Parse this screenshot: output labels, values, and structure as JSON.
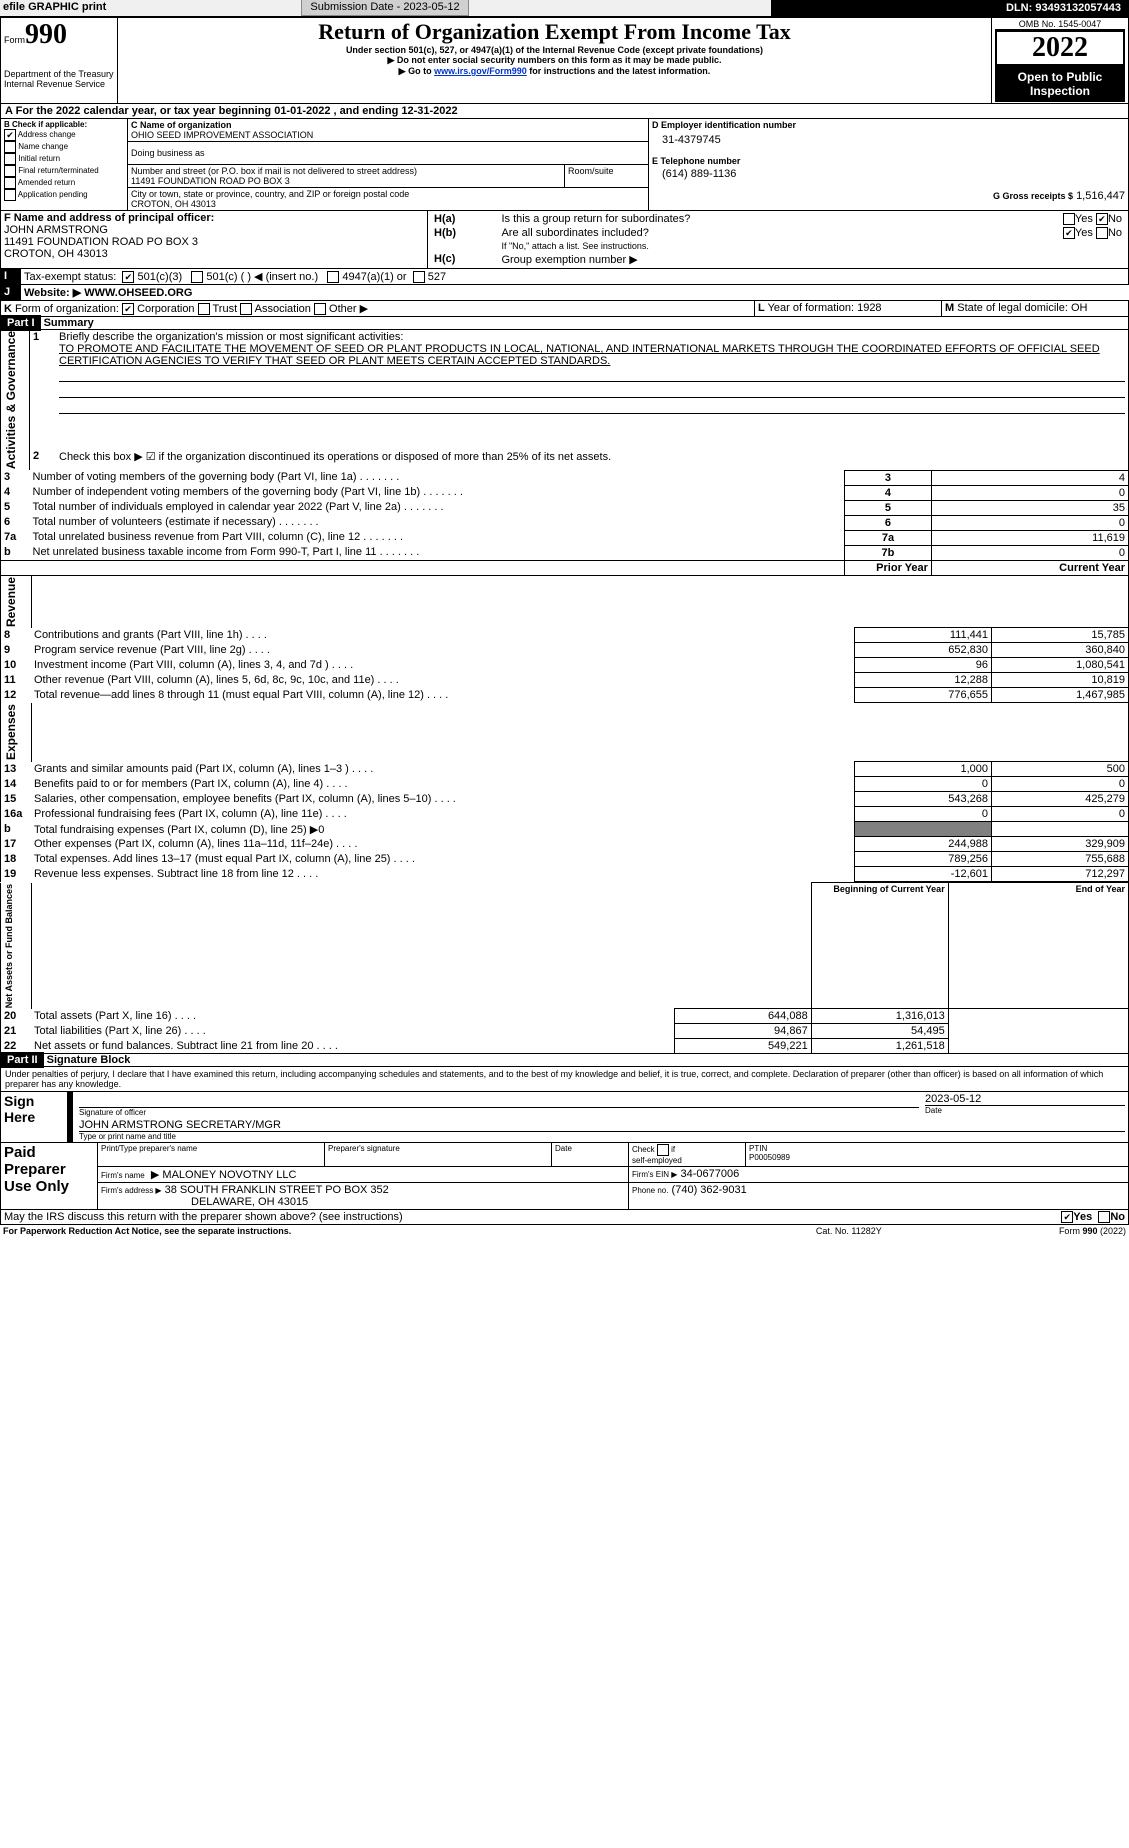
{
  "header": {
    "efile": "efile GRAPHIC print",
    "submission_label": "Submission Date - 2023-05-12",
    "dln_label": "DLN: 93493132057443"
  },
  "top": {
    "form": "990",
    "form_prefix": "Form",
    "title": "Return of Organization Exempt From Income Tax",
    "subtitle": "Under section 501(c), 527, or 4947(a)(1) of the Internal Revenue Code (except private foundations)",
    "note1": "▶ Do not enter social security numbers on this form as it may be made public.",
    "note2": "▶ Go to ",
    "link": "www.irs.gov/Form990",
    "note2b": " for instructions and the latest information.",
    "dept": "Department of the Treasury",
    "irs": "Internal Revenue Service",
    "omb": "OMB No. 1545-0047",
    "year": "2022",
    "open": "Open to Public Inspection"
  },
  "line_a": "For the 2022 calendar year, or tax year beginning 01-01-2022     , and ending 12-31-2022",
  "b": {
    "label": "B Check if applicable:",
    "items": [
      {
        "l": "Address change",
        "c": true
      },
      {
        "l": "Name change",
        "c": false
      },
      {
        "l": "Initial return",
        "c": false
      },
      {
        "l": "Final return/terminated",
        "c": false
      },
      {
        "l": "Amended return",
        "c": false
      },
      {
        "l": "Application pending",
        "c": false
      }
    ]
  },
  "c": {
    "name_label": "C Name of organization",
    "name": "OHIO SEED IMPROVEMENT ASSOCIATION",
    "dba_label": "Doing business as",
    "dba": "",
    "street_label": "Number and street (or P.O. box if mail is not delivered to street address)",
    "room_label": "Room/suite",
    "street": "11491 FOUNDATION ROAD PO BOX 3",
    "city_label": "City or town, state or province, country, and ZIP or foreign postal code",
    "city": "CROTON, OH  43013"
  },
  "d": {
    "label": "D Employer identification number",
    "val": "31-4379745"
  },
  "e": {
    "label": "E Telephone number",
    "val": "(614) 889-1136"
  },
  "g": {
    "label": "G Gross receipts $",
    "val": "1,516,447"
  },
  "f": {
    "label": "F  Name and address of principal officer:",
    "name": "JOHN ARMSTRONG",
    "addr1": "11491 FOUNDATION ROAD PO BOX 3",
    "addr2": "CROTON, OH  43013"
  },
  "h": {
    "a_label": "H(a)",
    "a_text": "Is this a group return for subordinates?",
    "a_yes": "Yes",
    "a_no": "No",
    "b_label": "H(b)",
    "b_text": "Are all subordinates included?",
    "b_note": "If \"No,\" attach a list. See instructions.",
    "c_label": "H(c)",
    "c_text": "Group exemption number ▶"
  },
  "i": {
    "label": "I",
    "text": "Tax-exempt status:",
    "o1": "501(c)(3)",
    "o2": "501(c) (   ) ◀ (insert no.)",
    "o3": "4947(a)(1) or",
    "o4": "527"
  },
  "j": {
    "label": "J",
    "text": "Website: ▶",
    "val": "WWW.OHSEED.ORG"
  },
  "k": {
    "label": "K",
    "text": "Form of organization:",
    "o1": "Corporation",
    "o2": "Trust",
    "o3": "Association",
    "o4": "Other ▶"
  },
  "l": {
    "label": "L",
    "text": "Year of formation:",
    "val": "1928"
  },
  "m": {
    "label": "M",
    "text": "State of legal domicile:",
    "val": "OH"
  },
  "part1": {
    "label": "Part I",
    "title": "Summary",
    "side_ag": "Activities & Governance",
    "side_rev": "Revenue",
    "side_exp": "Expenses",
    "side_net": "Net Assets or Fund Balances",
    "q1": "Briefly describe the organization's mission or most significant activities:",
    "mission": "TO PROMOTE AND FACILITATE THE MOVEMENT OF SEED OR PLANT PRODUCTS IN LOCAL, NATIONAL, AND INTERNATIONAL MARKETS THROUGH THE COORDINATED EFFORTS OF OFFICIAL SEED CERTIFICATION AGENCIES TO VERIFY THAT SEED OR PLANT MEETS CERTAIN ACCEPTED STANDARDS.",
    "q2": "Check this box ▶ ☑ if the organization discontinued its operations or disposed of more than 25% of its net assets.",
    "rows_ag": [
      {
        "n": "3",
        "t": "Number of voting members of the governing body (Part VI, line 1a)",
        "c": "3",
        "v": "4"
      },
      {
        "n": "4",
        "t": "Number of independent voting members of the governing body (Part VI, line 1b)",
        "c": "4",
        "v": "0"
      },
      {
        "n": "5",
        "t": "Total number of individuals employed in calendar year 2022 (Part V, line 2a)",
        "c": "5",
        "v": "35"
      },
      {
        "n": "6",
        "t": "Total number of volunteers (estimate if necessary)",
        "c": "6",
        "v": "0"
      },
      {
        "n": "7a",
        "t": "Total unrelated business revenue from Part VIII, column (C), line 12",
        "c": "7a",
        "v": "11,619"
      },
      {
        "n": "b",
        "t": "Net unrelated business taxable income from Form 990-T, Part I, line 11",
        "c": "7b",
        "v": "0"
      }
    ],
    "col_prior": "Prior Year",
    "col_current": "Current Year",
    "rows_rev": [
      {
        "n": "8",
        "t": "Contributions and grants (Part VIII, line 1h)",
        "p": "111,441",
        "c": "15,785"
      },
      {
        "n": "9",
        "t": "Program service revenue (Part VIII, line 2g)",
        "p": "652,830",
        "c": "360,840"
      },
      {
        "n": "10",
        "t": "Investment income (Part VIII, column (A), lines 3, 4, and 7d )",
        "p": "96",
        "c": "1,080,541"
      },
      {
        "n": "11",
        "t": "Other revenue (Part VIII, column (A), lines 5, 6d, 8c, 9c, 10c, and 11e)",
        "p": "12,288",
        "c": "10,819"
      },
      {
        "n": "12",
        "t": "Total revenue—add lines 8 through 11 (must equal Part VIII, column (A), line 12)",
        "p": "776,655",
        "c": "1,467,985"
      }
    ],
    "rows_exp": [
      {
        "n": "13",
        "t": "Grants and similar amounts paid (Part IX, column (A), lines 1–3 )",
        "p": "1,000",
        "c": "500"
      },
      {
        "n": "14",
        "t": "Benefits paid to or for members (Part IX, column (A), line 4)",
        "p": "0",
        "c": "0"
      },
      {
        "n": "15",
        "t": "Salaries, other compensation, employee benefits (Part IX, column (A), lines 5–10)",
        "p": "543,268",
        "c": "425,279"
      },
      {
        "n": "16a",
        "t": "Professional fundraising fees (Part IX, column (A), line 11e)",
        "p": "0",
        "c": "0"
      },
      {
        "n": "b",
        "t": "Total fundraising expenses (Part IX, column (D), line 25) ▶0",
        "p": "",
        "c": "",
        "gray": true
      },
      {
        "n": "17",
        "t": "Other expenses (Part IX, column (A), lines 11a–11d, 11f–24e)",
        "p": "244,988",
        "c": "329,909"
      },
      {
        "n": "18",
        "t": "Total expenses. Add lines 13–17 (must equal Part IX, column (A), line 25)",
        "p": "789,256",
        "c": "755,688"
      },
      {
        "n": "19",
        "t": "Revenue less expenses. Subtract line 18 from line 12",
        "p": "-12,601",
        "c": "712,297"
      }
    ],
    "col_begin": "Beginning of Current Year",
    "col_end": "End of Year",
    "rows_net": [
      {
        "n": "20",
        "t": "Total assets (Part X, line 16)",
        "p": "644,088",
        "c": "1,316,013"
      },
      {
        "n": "21",
        "t": "Total liabilities (Part X, line 26)",
        "p": "94,867",
        "c": "54,495"
      },
      {
        "n": "22",
        "t": "Net assets or fund balances. Subtract line 21 from line 20",
        "p": "549,221",
        "c": "1,261,518"
      }
    ]
  },
  "part2": {
    "label": "Part II",
    "title": "Signature Block",
    "decl": "Under penalties of perjury, I declare that I have examined this return, including accompanying schedules and statements, and to the best of my knowledge and belief, it is true, correct, and complete. Declaration of preparer (other than officer) is based on all information of which preparer has any knowledge.",
    "sign_here": "Sign Here",
    "sig_of_officer": "Signature of officer",
    "date_label": "Date",
    "sig_date": "2023-05-12",
    "officer_name": "JOHN ARMSTRONG  SECRETARY/MGR",
    "type_name": "Type or print name and title",
    "paid": "Paid Preparer Use Only",
    "prep_name_label": "Print/Type preparer's name",
    "prep_sig_label": "Preparer's signature",
    "check_label": "Check",
    "if_label": "if",
    "self_emp": "self-employed",
    "ptin_label": "PTIN",
    "ptin": "P00050989",
    "firm_name_label": "Firm's name",
    "firm_name": "MALONEY NOVOTNY LLC",
    "firm_ein_label": "Firm's EIN ▶",
    "firm_ein": "34-0677006",
    "firm_addr_label": "Firm's address ▶",
    "firm_addr": "38 SOUTH FRANKLIN STREET PO BOX 352",
    "firm_addr2": "DELAWARE, OH  43015",
    "phone_label": "Phone no.",
    "phone": "(740) 362-9031",
    "discuss": "May the IRS discuss this return with the preparer shown above? (see instructions)",
    "yes": "Yes",
    "no": "No"
  },
  "footer": {
    "pra": "For Paperwork Reduction Act Notice, see the separate instructions.",
    "cat": "Cat. No. 11282Y",
    "form": "Form 990 (2022)"
  }
}
